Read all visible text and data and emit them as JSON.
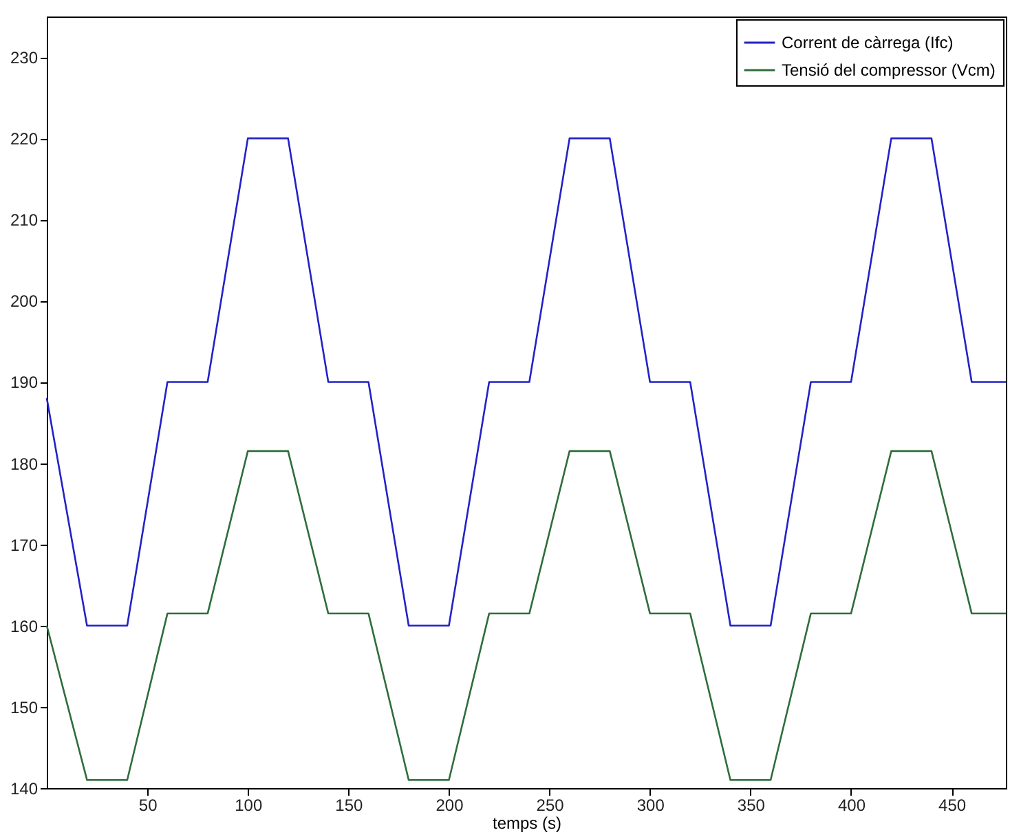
{
  "chart_data": {
    "type": "line",
    "xlabel": "temps (s)",
    "x": [
      0,
      20,
      40,
      60,
      80,
      100,
      120,
      140,
      160,
      180,
      200,
      220,
      240,
      260,
      280,
      300,
      320,
      340,
      360,
      380,
      400,
      420,
      440,
      460,
      477
    ],
    "series": [
      {
        "name": "Corrent de càrrega (Ifc)",
        "color": "#2222c8",
        "values": [
          188,
          160,
          160,
          190,
          190,
          220,
          220,
          190,
          190,
          160,
          160,
          190,
          190,
          220,
          220,
          190,
          190,
          160,
          160,
          190,
          190,
          220,
          220,
          190,
          190
        ]
      },
      {
        "name": "Tensió del compressor (Vcm)",
        "color": "#2e6e3a",
        "values": [
          160,
          141,
          141,
          161.5,
          161.5,
          181.5,
          181.5,
          161.5,
          161.5,
          141,
          141,
          161.5,
          161.5,
          181.5,
          181.5,
          161.5,
          161.5,
          141,
          141,
          161.5,
          161.5,
          181.5,
          181.5,
          161.5,
          161.5
        ]
      }
    ],
    "xlim": [
      0,
      477
    ],
    "xticks": [
      50,
      100,
      150,
      200,
      250,
      300,
      350,
      400,
      450
    ],
    "ylim": [
      140,
      235
    ],
    "yticks": [
      140,
      150,
      160,
      170,
      180,
      190,
      200,
      210,
      220,
      230
    ],
    "grid": false,
    "legend": "top right",
    "line_style": "solid",
    "marker": "none"
  }
}
